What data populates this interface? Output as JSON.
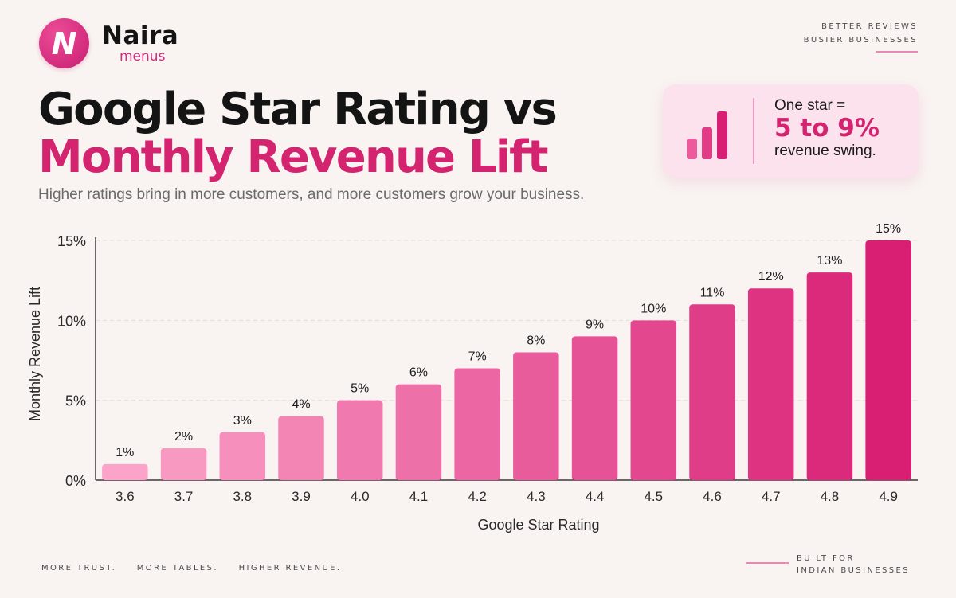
{
  "brand": {
    "name": "Naira",
    "sub": "menus",
    "badge_letter": "N"
  },
  "tagline_top": [
    "BETTER REVIEWS",
    "BUSIER BUSINESSES"
  ],
  "title_line1": "Google Star Rating vs",
  "title_line2": "Monthly Revenue Lift",
  "subtitle": "Higher ratings bring in more customers, and more customers grow your business.",
  "callout": {
    "line1": "One star =",
    "line2": "5 to 9%",
    "line3": "revenue swing.",
    "icon": "bar-chart-icon"
  },
  "colors": {
    "accent": "#d4236f",
    "bar_light": "#fba3c9",
    "bar_dark": "#d81f74",
    "background": "#f9f4f1"
  },
  "chart_data": {
    "type": "bar",
    "categories": [
      "3.6",
      "3.7",
      "3.8",
      "3.9",
      "4.0",
      "4.1",
      "4.2",
      "4.3",
      "4.4",
      "4.5",
      "4.6",
      "4.7",
      "4.8",
      "4.9"
    ],
    "values": [
      1,
      2,
      3,
      4,
      5,
      6,
      7,
      8,
      9,
      10,
      11,
      12,
      13,
      15
    ],
    "data_labels": [
      "1%",
      "2%",
      "3%",
      "4%",
      "5%",
      "6%",
      "7%",
      "8%",
      "9%",
      "10%",
      "11%",
      "12%",
      "13%",
      "15%"
    ],
    "xlabel": "Google Star Rating",
    "ylabel": "Monthly Revenue Lift",
    "ylim": [
      0,
      15
    ],
    "yticks": [
      0,
      5,
      10,
      15
    ],
    "ytick_labels": [
      "0%",
      "5%",
      "10%",
      "15%"
    ],
    "grid": true,
    "legend": "none"
  },
  "footer": {
    "left": [
      "MORE TRUST.",
      "MORE TABLES.",
      "HIGHER REVENUE."
    ],
    "right": [
      "BUILT FOR",
      "INDIAN BUSINESSES"
    ]
  }
}
